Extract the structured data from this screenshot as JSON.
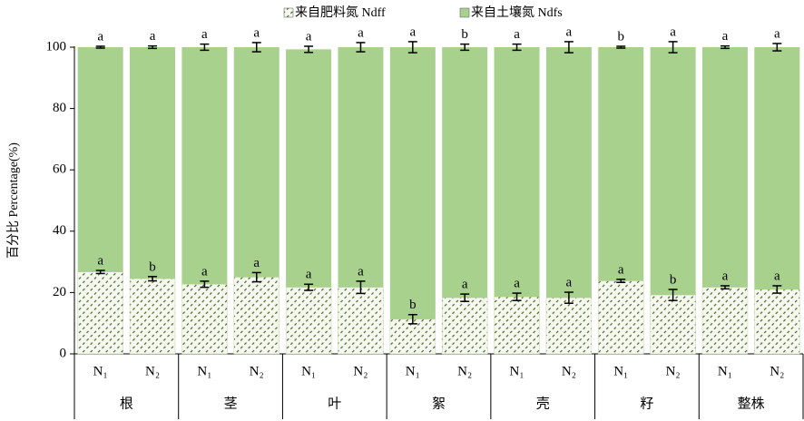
{
  "chart_data": {
    "type": "stacked-bar",
    "ylabel": "百分比 Percentage(%)",
    "groups": [
      "根",
      "茎",
      "叶",
      "絮",
      "壳",
      "籽",
      "整株"
    ],
    "categories": [
      "N₁",
      "N₂",
      "N₁",
      "N₂",
      "N₁",
      "N₂",
      "N₁",
      "N₂",
      "N₁",
      "N₂",
      "N₁",
      "N₂",
      "N₁",
      "N₂"
    ],
    "series": [
      {
        "name": "来自肥料氮 Ndff",
        "color": "#4f6228",
        "pattern": "hatch",
        "values": [
          26.7,
          24.5,
          22.7,
          25.0,
          21.7,
          21.7,
          11.3,
          18.3,
          18.6,
          18.3,
          23.8,
          19.2,
          21.7,
          21.0
        ],
        "errors": [
          0.5,
          0.7,
          1.0,
          1.5,
          1.0,
          2.0,
          1.5,
          1.2,
          1.2,
          1.8,
          0.5,
          1.8,
          0.5,
          1.2
        ],
        "letters": [
          "a",
          "b",
          "a",
          "a",
          "a",
          "a",
          "b",
          "a",
          "a",
          "a",
          "a",
          "b",
          "a",
          "a"
        ]
      },
      {
        "name": "来自土壤氮 Ndfs",
        "color": "#a9d18e",
        "values": [
          73.3,
          75.5,
          77.3,
          75.0,
          77.6,
          78.3,
          88.7,
          81.7,
          81.4,
          81.7,
          76.2,
          80.8,
          78.3,
          79.0
        ],
        "errors": [
          0.3,
          0.4,
          1.0,
          1.5,
          1.0,
          1.5,
          1.8,
          1.0,
          1.0,
          1.8,
          0.3,
          1.8,
          0.4,
          1.2
        ],
        "letters": [
          "a",
          "a",
          "a",
          "a",
          "a",
          "a",
          "a",
          "b",
          "a",
          "a",
          "b",
          "a",
          "a",
          "a"
        ]
      }
    ],
    "ylim": [
      0,
      100
    ],
    "yticks": [
      0,
      20,
      40,
      60,
      80,
      100
    ]
  }
}
